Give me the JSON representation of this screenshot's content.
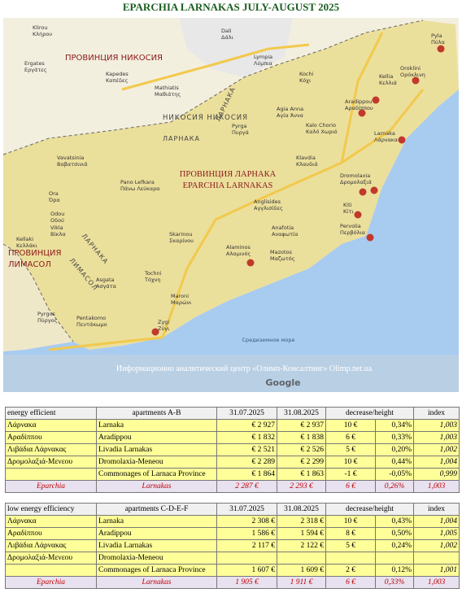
{
  "title": "EPARCHIA LARNAKAS JULY-AUGUST 2025",
  "map": {
    "regions": [
      "ПРОВИНЦИЯ НИКОСИЯ",
      "ПРОВИНЦИЯ ЛАРНАКА",
      "EPARCHIA LARNAKAS",
      "ПРОВИНЦИЯ",
      "ЛИМАСОЛ"
    ],
    "roads": [
      "НИКОСИЯ НИКОСИЯ",
      "ЛАРНАКА",
      "ЛАРНАКА",
      "ЛАРНАКА",
      "ЛИМАСОЛ"
    ],
    "places": [
      {
        "name": "Klirou",
        "local": "Κλήρου"
      },
      {
        "name": "Ergates",
        "local": "Εργάτες"
      },
      {
        "name": "Dali",
        "local": "Δάλι"
      },
      {
        "name": "Lympia",
        "local": "Λύμπια"
      },
      {
        "name": "Kapedes",
        "local": "Καπέδες"
      },
      {
        "name": "Mathiatis",
        "local": "Μαθιάτης"
      },
      {
        "name": "Kochi",
        "local": "Κόχι"
      },
      {
        "name": "Kellia",
        "local": "Κελλιά"
      },
      {
        "name": "Oroklini",
        "local": "Ορόκλινη"
      },
      {
        "name": "Pyla",
        "local": "Πύλα"
      },
      {
        "name": "Aradippou",
        "local": "Αραδίππου"
      },
      {
        "name": "Agia Anna",
        "local": "Αγία Άννα"
      },
      {
        "name": "Pyrga",
        "local": "Πυργά"
      },
      {
        "name": "Kalo Chorio",
        "local": "Καλό Χωριό"
      },
      {
        "name": "Larnaka",
        "local": "Λάρνακα"
      },
      {
        "name": "Klavdia",
        "local": "Κλαυδιά"
      },
      {
        "name": "Vavatsinia",
        "local": "Βαβατσινιά"
      },
      {
        "name": "Pano Lefkara",
        "local": "Πάνω Λεύκαρα"
      },
      {
        "name": "Dromolaxia",
        "local": "Δρομολαξιά"
      },
      {
        "name": "Ora",
        "local": "Όρα"
      },
      {
        "name": "Odou",
        "local": "Οδού"
      },
      {
        "name": "Anglisides",
        "local": "Αγγλισίδες"
      },
      {
        "name": "Kiti",
        "local": "Κίτι"
      },
      {
        "name": "Pervolia",
        "local": "Περβόλια"
      },
      {
        "name": "Vikla",
        "local": "Βίκλα"
      },
      {
        "name": "Kellaki",
        "local": "Κελλάκι"
      },
      {
        "name": "Skarinou",
        "local": "Σκαρίνου"
      },
      {
        "name": "Anafotia",
        "local": "Αναφωτία"
      },
      {
        "name": "Alaminos",
        "local": "Αλαμινός"
      },
      {
        "name": "Mazotos",
        "local": "Μαζωτός"
      },
      {
        "name": "Asgata",
        "local": "Ασγάτα"
      },
      {
        "name": "Tochni",
        "local": "Τόχνη"
      },
      {
        "name": "Maroni",
        "local": "Μαρώνι"
      },
      {
        "name": "Pyrgos",
        "local": "Πύργος"
      },
      {
        "name": "Pentakomo",
        "local": "Πεντάκωμο"
      },
      {
        "name": "Zygi",
        "local": "Ζύγι"
      }
    ],
    "sea": "Средиземное море",
    "watermark": "Информационно аналитический центр «Олимп-Консалтинг»  Olimp.net.ua",
    "google": "Google"
  },
  "tables": [
    {
      "header": [
        "energy efficient",
        "apartments A-B",
        "31.07.2025",
        "31.08.2025",
        "decrease/height",
        "index"
      ],
      "rows": [
        [
          "Λάρνακα",
          "Larnaka",
          "€ 2 927",
          "€ 2 937",
          "10 €",
          "0,34%",
          "1,003"
        ],
        [
          "Αραδίππου",
          "Aradippou",
          "€ 1 832",
          "€ 1 838",
          "6 €",
          "0,33%",
          "1,003"
        ],
        [
          "Λιβάδια Λάρνακας",
          "Livadia Larnakas",
          "€ 2 521",
          "€ 2 526",
          "5 €",
          "0,20%",
          "1,002"
        ],
        [
          "Δρομολαξιά-Μενεου",
          "Dromolaxia-Meneou",
          "€ 2 289",
          "€ 2 299",
          "10 €",
          "0,44%",
          "1,004"
        ],
        [
          null,
          "Commonages of Larnaca Province",
          "€ 1 864",
          "€ 1 863",
          "-1 €",
          "-0,05%",
          "0,999"
        ]
      ],
      "total": [
        "Eparchia",
        "Larnakas",
        "2 287 €",
        "2 293 €",
        "6 €",
        "0,26%",
        "1,003"
      ]
    },
    {
      "header": [
        "low energy efficiency",
        "apartments C-D-E-F",
        "31.07.2025",
        "31.08.2025",
        "decrease/height",
        "index"
      ],
      "rows": [
        [
          "Λάρνακα",
          "Larnaka",
          "2 308 €",
          "2 318 €",
          "10 €",
          "0,43%",
          "1,004"
        ],
        [
          "Αραδίππου",
          "Aradippou",
          "1 586 €",
          "1 594 €",
          "8 €",
          "0,50%",
          "1,005"
        ],
        [
          "Λιβάδια Λάρνακας",
          "Livadia Larnakas",
          "2 117 €",
          "2 122 €",
          "5 €",
          "0,24%",
          "1,002"
        ],
        [
          "Δρομολαξιά-Μενεου",
          "Dromolaxia-Meneou",
          null,
          null,
          null,
          null,
          null
        ],
        [
          null,
          "Commonages of Larnaca Province",
          "1 607 €",
          "1 609 €",
          "2 €",
          "0,12%",
          "1,001"
        ]
      ],
      "total": [
        "Eparchia",
        "Larnakas",
        "1 905 €",
        "1 911 €",
        "6 €",
        "0,33%",
        "1,003"
      ]
    }
  ]
}
